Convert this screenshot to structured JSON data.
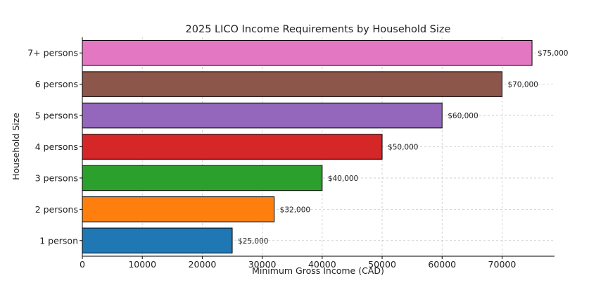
{
  "chart_data": {
    "type": "bar",
    "orientation": "horizontal",
    "title": "2025 LICO Income Requirements by Household Size",
    "xlabel": "Minimum Gross Income (CAD)",
    "ylabel": "Household Size",
    "categories": [
      "1 person",
      "2 persons",
      "3 persons",
      "4 persons",
      "5 persons",
      "6 persons",
      "7+ persons"
    ],
    "values": [
      25000,
      32000,
      40000,
      50000,
      60000,
      70000,
      75000
    ],
    "data_labels": [
      "$25,000",
      "$32,000",
      "$40,000",
      "$50,000",
      "$60,000",
      "$70,000",
      "$75,000"
    ],
    "colors": [
      "#1f77b4",
      "#ff7f0e",
      "#2ca02c",
      "#d62728",
      "#9467bd",
      "#8c564b",
      "#e377c2"
    ],
    "xlim": [
      0,
      78750
    ],
    "xticks": [
      0,
      10000,
      20000,
      30000,
      40000,
      50000,
      60000,
      70000
    ],
    "xtick_labels": [
      "0",
      "10000",
      "20000",
      "30000",
      "40000",
      "50000",
      "60000",
      "70000"
    ],
    "grid": "x dashed"
  }
}
